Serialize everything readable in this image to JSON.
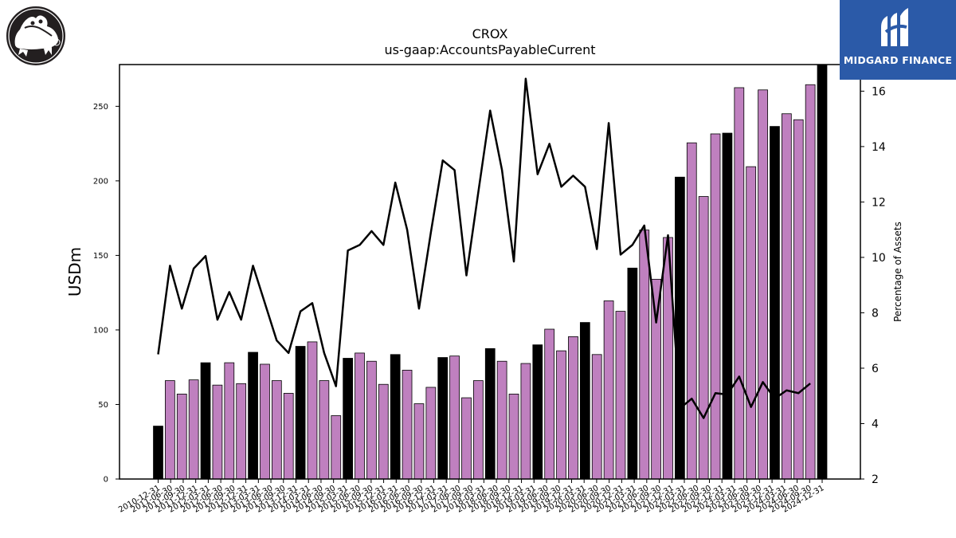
{
  "brand": {
    "name": "MIDGARD FINANCE"
  },
  "chart_data": {
    "type": "bar",
    "title": "CROX",
    "subtitle": "us-gaap:AccountsPayableCurrent",
    "ylabel": "USDm",
    "y2label": "Percentage of Assets",
    "ylim": [
      0,
      278
    ],
    "y2lim": [
      2,
      16.96
    ],
    "yticks": [
      0,
      50,
      100,
      150,
      200,
      250
    ],
    "y2ticks": [
      2,
      4,
      6,
      8,
      10,
      12,
      14,
      16
    ],
    "colors": {
      "bar_q4": "#000000",
      "bar_other": "#bf80bf",
      "line": "#000000"
    },
    "series": [
      {
        "name": "",
        "kind": "bar",
        "categories": [
          "2010-12-31",
          "2011-03-31",
          "2011-06-30",
          "2011-09-30",
          "2011-12-31",
          "2012-03-31",
          "2012-06-30",
          "2012-09-30",
          "2012-12-31",
          "2013-03-31",
          "2013-06-30",
          "2013-09-30",
          "2013-12-31",
          "2014-03-31",
          "2014-06-30",
          "2014-09-30",
          "2014-12-31",
          "2015-03-31",
          "2015-06-30",
          "2015-09-30",
          "2015-12-31",
          "2016-03-31",
          "2016-06-30",
          "2016-09-30",
          "2016-12-31",
          "2017-03-31",
          "2017-06-30",
          "2017-09-30",
          "2017-12-31",
          "2018-03-31",
          "2018-06-30",
          "2018-09-30",
          "2018-12-31",
          "2019-03-31",
          "2019-06-30",
          "2019-09-30",
          "2019-12-31",
          "2020-03-31",
          "2020-06-30",
          "2020-09-30",
          "2020-12-31",
          "2021-03-31",
          "2021-06-30",
          "2021-09-30",
          "2021-12-31",
          "2022-03-31",
          "2022-06-30",
          "2022-09-30",
          "2022-12-31",
          "2023-03-31",
          "2023-06-30",
          "2023-09-30",
          "2023-12-31",
          "2024-03-31",
          "2024-06-30",
          "2024-09-30",
          "2024-12-31"
        ],
        "values": [
          35.5,
          66,
          57,
          66.5,
          78,
          63,
          78,
          64,
          85,
          77,
          66,
          57.5,
          89,
          92,
          66,
          42.5,
          81,
          84.5,
          79,
          63.5,
          83.5,
          73,
          50.5,
          61.5,
          81.5,
          82.5,
          54.5,
          66,
          87.5,
          79,
          57,
          77.5,
          90,
          100.5,
          86,
          95.5,
          105,
          83.5,
          119.5,
          112.5,
          141.5,
          167,
          134,
          162,
          202.5,
          225.5,
          189.5,
          231.5,
          232,
          262.5,
          209.5,
          261,
          236.5,
          245,
          241,
          264.5,
          278
        ]
      },
      {
        "name": "",
        "kind": "line",
        "axis": "right",
        "values": [
          6.5,
          9.7,
          8.15,
          9.6,
          10.05,
          7.75,
          8.75,
          7.75,
          9.7,
          8.35,
          7.0,
          6.55,
          8.05,
          8.35,
          6.55,
          5.35,
          10.25,
          10.45,
          10.95,
          10.45,
          12.7,
          11.0,
          8.15,
          10.9,
          13.5,
          13.15,
          9.35,
          12.35,
          15.3,
          13.15,
          9.85,
          16.45,
          13.0,
          14.1,
          12.55,
          12.95,
          12.55,
          10.3,
          14.85,
          10.1,
          10.45,
          11.15,
          7.65,
          10.8,
          4.55,
          4.9,
          4.2,
          5.1,
          5.05,
          5.7,
          4.6,
          5.5,
          4.9,
          5.2,
          5.1,
          5.45,
          null
        ]
      }
    ],
    "xticks": [
      "2010-12-31",
      "2011-06-30",
      "2011-09-30",
      "2011-12-31",
      "2012-03-31",
      "2012-06-30",
      "2012-09-30",
      "2012-12-31",
      "2013-03-31",
      "2013-06-30",
      "2013-09-30",
      "2013-12-31",
      "2014-03-31",
      "2014-06-30",
      "2014-09-30",
      "2015-03-31",
      "2015-06-30",
      "2015-09-30",
      "2015-12-31",
      "2016-03-31",
      "2016-06-30",
      "2016-09-30",
      "2016-12-31",
      "2017-03-31",
      "2017-06-30",
      "2017-09-30",
      "2018-03-31",
      "2018-06-30",
      "2018-09-30",
      "2018-12-31",
      "2019-03-31",
      "2019-06-30",
      "2019-09-30",
      "2019-12-31",
      "2020-03-31",
      "2020-06-30",
      "2020-09-30",
      "2020-12-31",
      "2021-03-31",
      "2021-06-30",
      "2021-09-30",
      "2021-12-31",
      "2022-03-31",
      "2022-06-30",
      "2022-09-30",
      "2022-12-31",
      "2023-03-31",
      "2023-06-30",
      "2023-09-30",
      "2023-12-31",
      "2024-03-31",
      "2024-06-30",
      "2024-09-30",
      "2024-12-31"
    ],
    "grid": false,
    "legend": "none"
  }
}
